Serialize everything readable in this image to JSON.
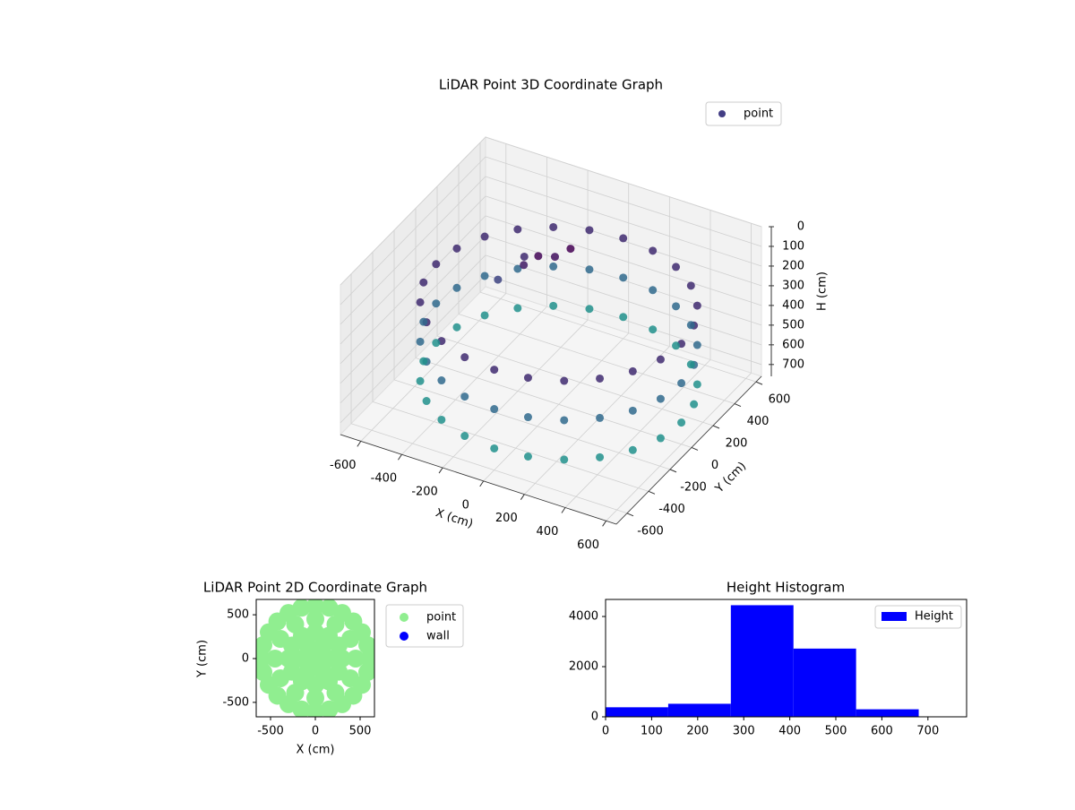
{
  "chart_data": [
    {
      "type": "scatter3d",
      "title": "LiDAR Point 3D Coordinate Graph",
      "xlabel": "X (cm)",
      "ylabel": "Y (cm)",
      "zlabel": "H (cm)",
      "xlim": [
        -700,
        650
      ],
      "ylim": [
        -700,
        650
      ],
      "zlim": [
        0,
        760
      ],
      "z_inverted": true,
      "xticks": [
        -600,
        -400,
        -200,
        0,
        200,
        400,
        600
      ],
      "yticks": [
        -600,
        -400,
        -200,
        0,
        200,
        400,
        600
      ],
      "zticks": [
        0,
        100,
        200,
        300,
        400,
        500,
        600,
        700
      ],
      "colormap": [
        "#440154",
        "#3b528b",
        "#2c728e",
        "#21918c"
      ],
      "legend": "upper right",
      "series": [
        {
          "name": "point",
          "color": "#433e85",
          "x": [
            600,
            580,
            520,
            424,
            300,
            155,
            0,
            -155,
            -300,
            -424,
            -520,
            -580,
            -600,
            -580,
            -520,
            -424,
            -300,
            -155,
            0,
            155,
            300,
            424,
            520,
            580,
            600,
            580,
            520,
            424,
            300,
            155,
            0,
            -155,
            -300,
            -424,
            -520,
            -580,
            -600,
            -580,
            -520,
            -424,
            -300,
            -155,
            0,
            155,
            300,
            424,
            520,
            580,
            600,
            580,
            520,
            424,
            300,
            155,
            0,
            -155,
            -300,
            -424,
            -520,
            -580,
            -600,
            -580,
            -520,
            -424,
            -300,
            -155,
            0,
            155,
            300,
            424,
            520,
            580,
            -200,
            -150,
            -250,
            -100,
            -300,
            -350
          ],
          "y": [
            0,
            155,
            300,
            424,
            520,
            580,
            600,
            580,
            520,
            424,
            300,
            155,
            0,
            -155,
            -300,
            -424,
            -520,
            -580,
            -600,
            -580,
            -520,
            -424,
            -300,
            -155,
            0,
            155,
            300,
            424,
            520,
            580,
            600,
            580,
            520,
            424,
            300,
            155,
            0,
            -155,
            -300,
            -424,
            -520,
            -580,
            -600,
            -580,
            -520,
            -424,
            -300,
            -155,
            0,
            155,
            300,
            424,
            520,
            580,
            600,
            580,
            520,
            424,
            300,
            155,
            0,
            -155,
            -300,
            -424,
            -520,
            -580,
            -600,
            -580,
            -520,
            -424,
            -300,
            -155,
            190,
            250,
            150,
            300,
            250,
            100
          ],
          "z": [
            250,
            250,
            250,
            250,
            250,
            250,
            250,
            250,
            250,
            250,
            250,
            250,
            250,
            250,
            250,
            250,
            250,
            250,
            250,
            250,
            250,
            250,
            250,
            250,
            450,
            450,
            450,
            450,
            450,
            450,
            450,
            450,
            450,
            450,
            450,
            450,
            450,
            450,
            450,
            450,
            450,
            450,
            450,
            450,
            450,
            450,
            450,
            450,
            650,
            650,
            650,
            650,
            650,
            650,
            650,
            650,
            650,
            650,
            650,
            650,
            650,
            650,
            650,
            650,
            650,
            650,
            650,
            650,
            650,
            650,
            650,
            650,
            180,
            200,
            220,
            170,
            250,
            300
          ]
        }
      ]
    },
    {
      "type": "scatter",
      "title": "LiDAR Point 2D Coordinate Graph",
      "xlabel": "X (cm)",
      "ylabel": "Y (cm)",
      "xlim": [
        -660,
        660
      ],
      "ylim": [
        -665,
        675
      ],
      "xticks": [
        -500,
        0,
        500
      ],
      "yticks": [
        -500,
        0,
        500
      ],
      "legend": "outside right",
      "series": [
        {
          "name": "point",
          "color": "#90ee90",
          "x": [
            600,
            580,
            520,
            424,
            300,
            155,
            0,
            -155,
            -300,
            -424,
            -520,
            -580,
            -600,
            -580,
            -520,
            -424,
            -300,
            -155,
            0,
            155,
            300,
            424,
            520,
            580,
            450,
            390,
            225,
            0,
            -225,
            -390,
            -450,
            -390,
            -225,
            0,
            225,
            390,
            300,
            260,
            150,
            0,
            -150,
            -260,
            -300,
            -260,
            -150,
            0,
            150,
            260,
            150,
            75,
            -75,
            -150,
            -75,
            75,
            0
          ],
          "y": [
            0,
            155,
            300,
            424,
            520,
            580,
            600,
            580,
            520,
            424,
            300,
            155,
            0,
            -155,
            -300,
            -424,
            -520,
            -580,
            -600,
            -580,
            -520,
            -424,
            -300,
            -155,
            0,
            225,
            390,
            450,
            390,
            225,
            0,
            -225,
            -390,
            -450,
            -390,
            -225,
            0,
            150,
            260,
            300,
            260,
            150,
            0,
            -150,
            -260,
            -300,
            -260,
            -150,
            0,
            130,
            130,
            0,
            -130,
            -130,
            0
          ]
        },
        {
          "name": "wall",
          "color": "#0000ff",
          "x": [],
          "y": []
        }
      ]
    },
    {
      "type": "histogram",
      "title": "Height Histogram",
      "bins": [
        0,
        136,
        272,
        408,
        544,
        680
      ],
      "counts": [
        380,
        520,
        4450,
        2720,
        300
      ],
      "color": "#0000ff",
      "series_name": "Height",
      "legend": "upper right",
      "xlim": [
        0,
        784
      ],
      "ylim": [
        0,
        4680
      ],
      "xticks": [
        0,
        100,
        200,
        300,
        400,
        500,
        600,
        700
      ],
      "yticks": [
        0,
        2000,
        4000
      ]
    }
  ]
}
